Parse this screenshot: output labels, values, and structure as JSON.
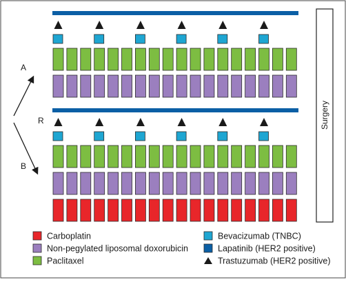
{
  "arms": {
    "a": "A",
    "b": "B",
    "randomization": "R"
  },
  "surgery_label": "Surgery",
  "weeks": 18,
  "bevacizumab_every": 3,
  "colors": {
    "carboplatin": "#e8262a",
    "doxorubicin": "#9b7fbf",
    "paclitaxel": "#7dbd42",
    "bevacizumab": "#1ea6d2",
    "lapatinib": "#0b5fa5",
    "trastuzumab": "#1a1a1a",
    "border": "#2b2b2b"
  },
  "legend": [
    {
      "key": "carboplatin",
      "label": "Carboplatin",
      "shape": "square"
    },
    {
      "key": "doxorubicin",
      "label": "Non-pegylated liposomal doxorubicin",
      "shape": "square"
    },
    {
      "key": "paclitaxel",
      "label": "Paclitaxel",
      "shape": "square"
    },
    {
      "key": "bevacizumab",
      "label": "Bevacizumab (TNBC)",
      "shape": "square"
    },
    {
      "key": "lapatinib",
      "label": "Lapatinib (HER2 positive)",
      "shape": "square"
    },
    {
      "key": "trastuzumab",
      "label": "Trastuzumab (HER2 positive)",
      "shape": "triangle"
    }
  ]
}
